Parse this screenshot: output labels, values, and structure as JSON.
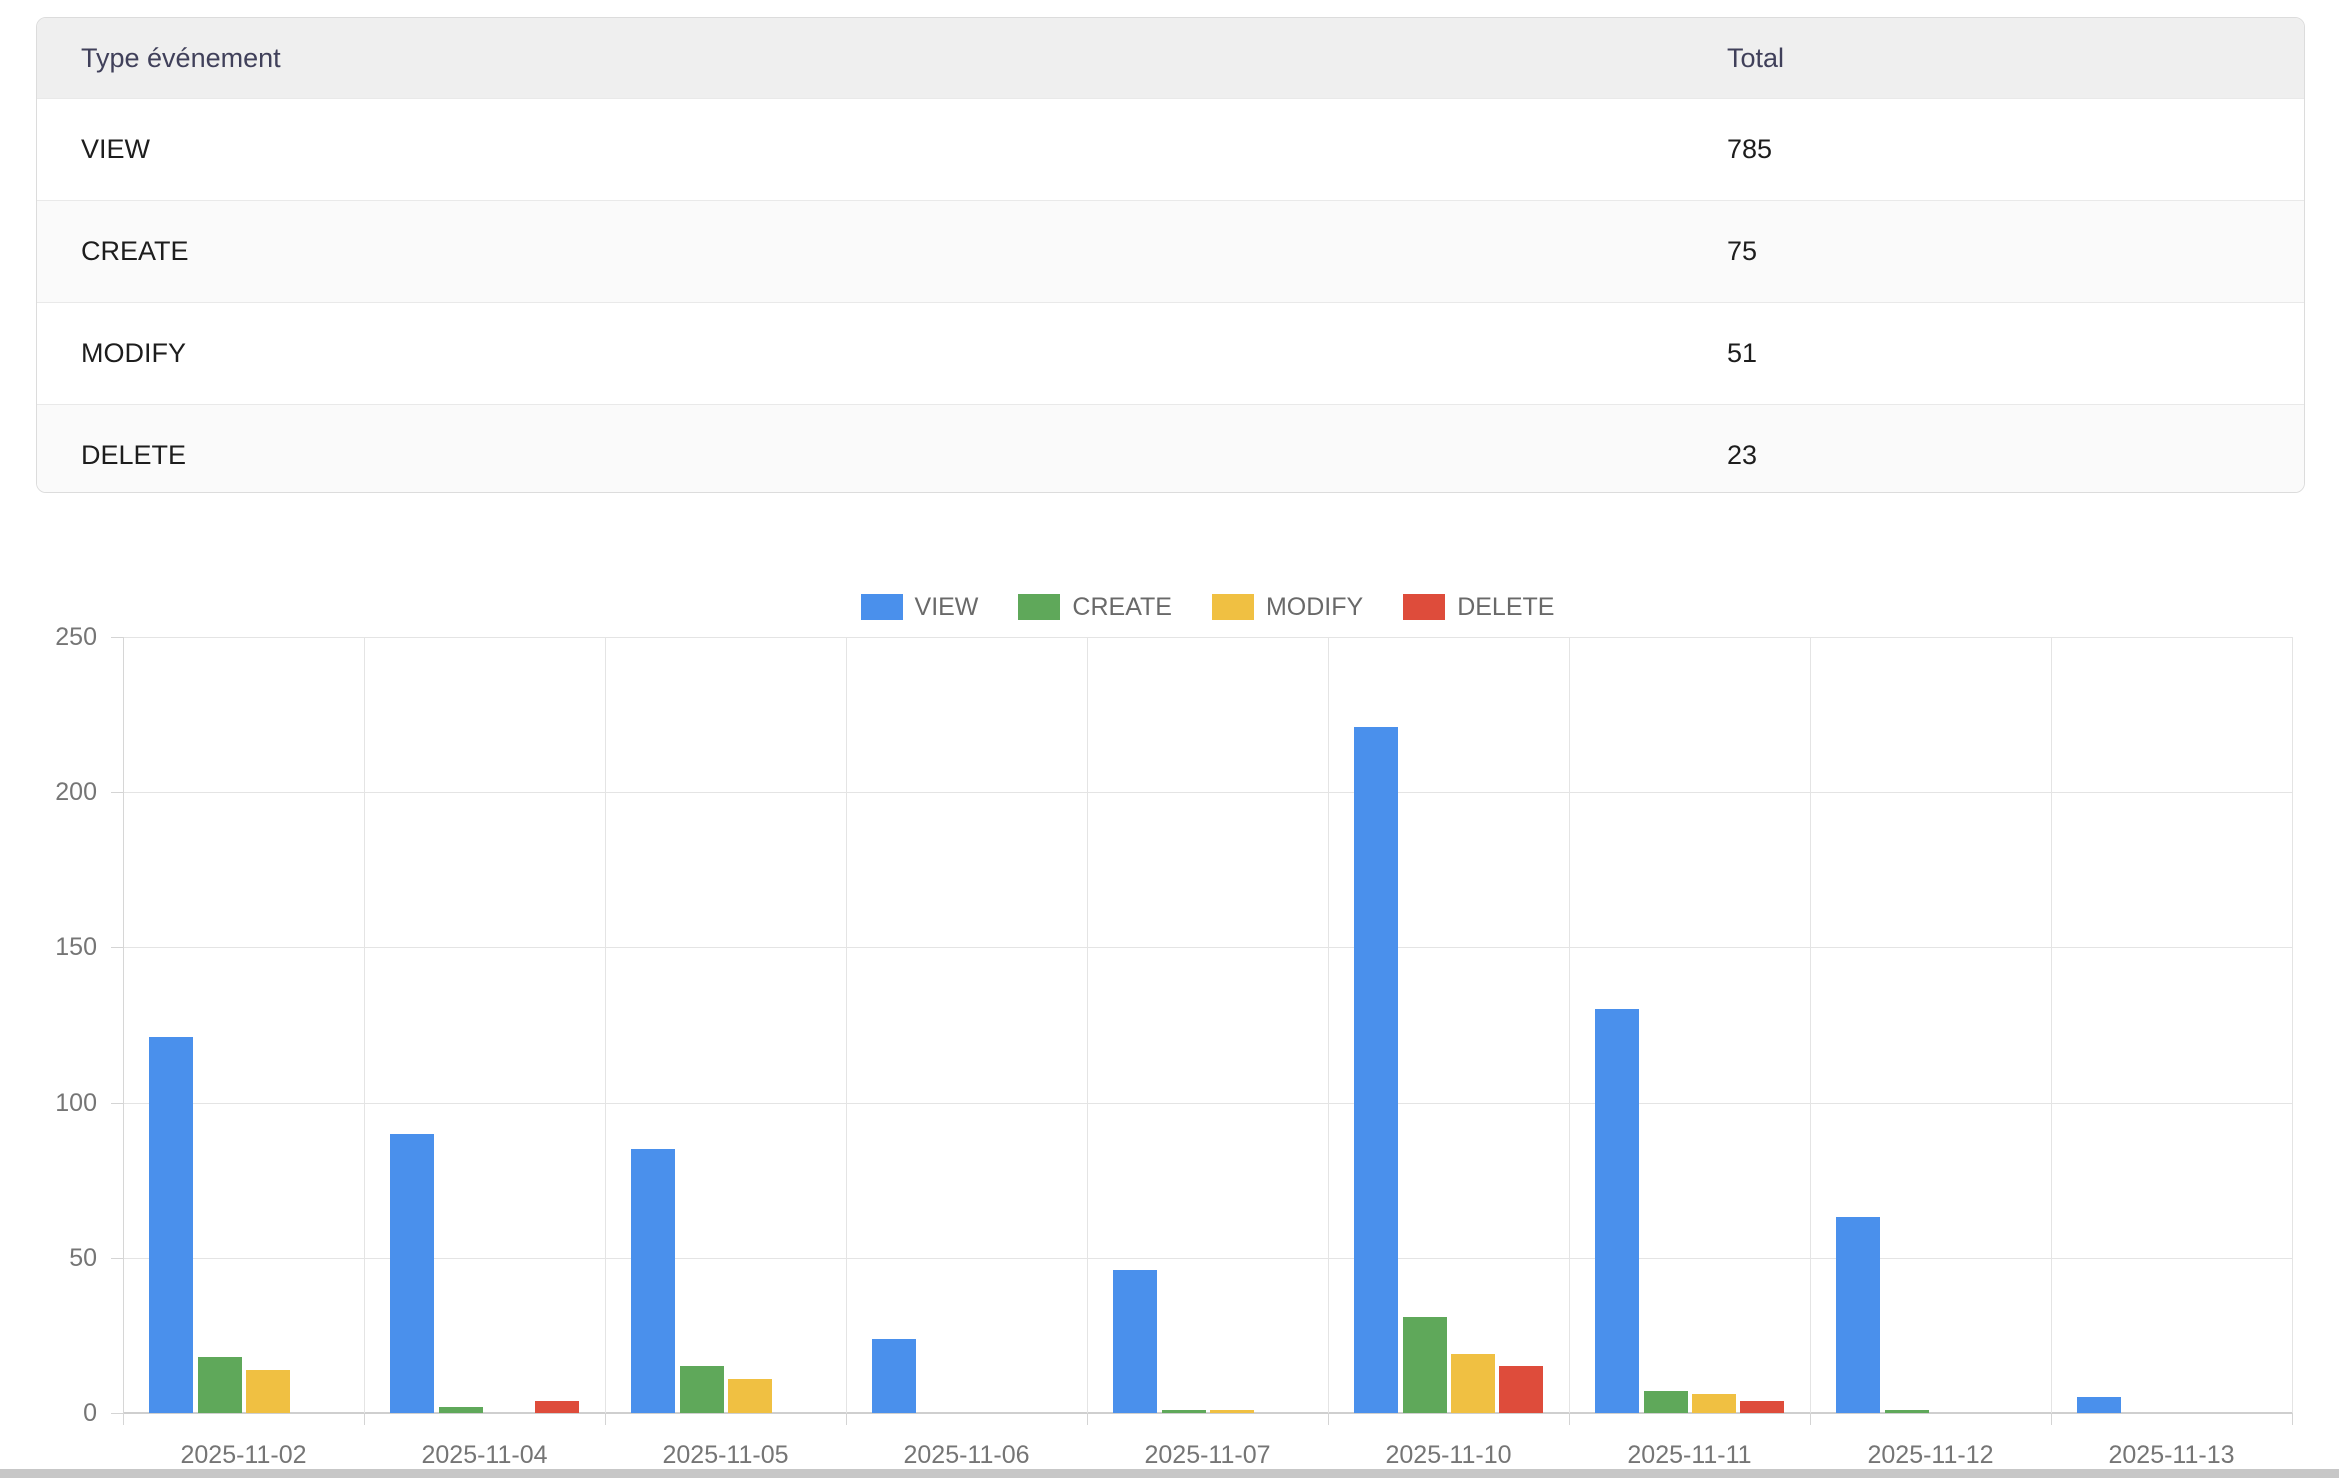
{
  "table": {
    "columns": [
      "Type événement",
      "Total"
    ],
    "rows": [
      {
        "type": "VIEW",
        "total": "785"
      },
      {
        "type": "CREATE",
        "total": "75"
      },
      {
        "type": "MODIFY",
        "total": "51"
      },
      {
        "type": "DELETE",
        "total": "23"
      }
    ]
  },
  "chart_data": {
    "type": "bar",
    "title": "",
    "xlabel": "",
    "ylabel": "",
    "categories": [
      "2025-11-02",
      "2025-11-04",
      "2025-11-05",
      "2025-11-06",
      "2025-11-07",
      "2025-11-10",
      "2025-11-11",
      "2025-11-12",
      "2025-11-13"
    ],
    "series": [
      {
        "name": "VIEW",
        "color": "#4a90ec",
        "values": [
          121,
          90,
          85,
          24,
          46,
          221,
          130,
          63,
          5
        ]
      },
      {
        "name": "CREATE",
        "color": "#5fa85a",
        "values": [
          18,
          2,
          15,
          0,
          1,
          31,
          7,
          1,
          0
        ]
      },
      {
        "name": "MODIFY",
        "color": "#f0c042",
        "values": [
          14,
          0,
          11,
          0,
          1,
          19,
          6,
          0,
          0
        ]
      },
      {
        "name": "DELETE",
        "color": "#de4c3b",
        "values": [
          0,
          4,
          0,
          0,
          0,
          15,
          4,
          0,
          0
        ]
      }
    ],
    "ylim": [
      0,
      250
    ],
    "yticks": [
      0,
      50,
      100,
      150,
      200,
      250
    ],
    "grid": true,
    "legend_position": "top"
  }
}
